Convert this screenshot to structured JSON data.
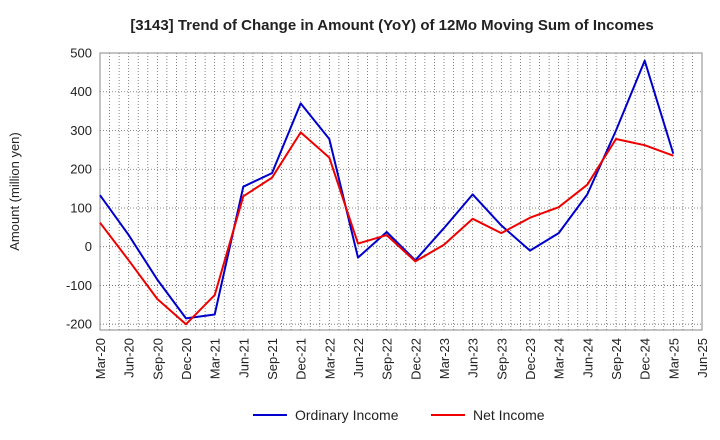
{
  "chart_data": {
    "type": "line",
    "title": "[3143]  Trend of Change in Amount (YoY) of 12Mo Moving Sum of Incomes",
    "xlabel": "",
    "ylabel": "Amount (million yen)",
    "ylim": [
      -215,
      500
    ],
    "yticks": [
      -200,
      -100,
      0,
      100,
      200,
      300,
      400,
      500
    ],
    "ytick_labels": [
      "-200",
      "-100",
      "0",
      "100",
      "200",
      "300",
      "400",
      "500"
    ],
    "categories": [
      "Mar-20",
      "Jun-20",
      "Sep-20",
      "Dec-20",
      "Mar-21",
      "Jun-21",
      "Sep-21",
      "Dec-21",
      "Mar-22",
      "Jun-22",
      "Sep-22",
      "Dec-22",
      "Mar-23",
      "Jun-23",
      "Sep-23",
      "Dec-23",
      "Mar-24",
      "Jun-24",
      "Sep-24",
      "Dec-24",
      "Mar-25",
      "Jun-25"
    ],
    "grid": true,
    "legend_position": "bottom",
    "series": [
      {
        "name": "Ordinary Income",
        "color": "#0000cc",
        "values": [
          133,
          30,
          -85,
          -185,
          -175,
          155,
          190,
          370,
          278,
          -28,
          38,
          -35,
          48,
          135,
          55,
          -10,
          35,
          135,
          300,
          480,
          240,
          null
        ]
      },
      {
        "name": "Net Income",
        "color": "#ee0000",
        "values": [
          62,
          -35,
          -135,
          -200,
          -125,
          130,
          178,
          295,
          230,
          8,
          30,
          -38,
          5,
          72,
          35,
          75,
          102,
          160,
          278,
          262,
          235,
          null
        ]
      }
    ]
  }
}
